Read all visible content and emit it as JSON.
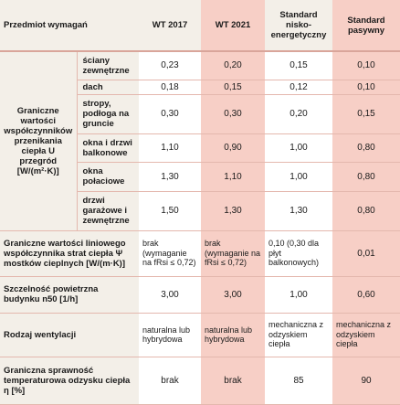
{
  "header": {
    "col0": "Przedmiot wymagań",
    "col1": "WT 2017",
    "col2": "WT 2021",
    "col3": "Standard nisko-energetyczny",
    "col4": "Standard pasywny"
  },
  "group_u": {
    "label": "Graniczne wartości współczynników przenikania ciepła U przegród [W/(m²·K)]",
    "rows": [
      {
        "name": "ściany zewnętrzne",
        "v1": "0,23",
        "v2": "0,20",
        "v3": "0,15",
        "v4": "0,10"
      },
      {
        "name": "dach",
        "v1": "0,18",
        "v2": "0,15",
        "v3": "0,12",
        "v4": "0,10"
      },
      {
        "name": "stropy, podłoga na gruncie",
        "v1": "0,30",
        "v2": "0,30",
        "v3": "0,20",
        "v4": "0,15"
      },
      {
        "name": "okna i drzwi balkonowe",
        "v1": "1,10",
        "v2": "0,90",
        "v3": "1,00",
        "v4": "0,80"
      },
      {
        "name": "okna połaciowe",
        "v1": "1,30",
        "v2": "1,10",
        "v3": "1,00",
        "v4": "0,80"
      },
      {
        "name": "drzwi garażowe i zewnętrzne",
        "v1": "1,50",
        "v2": "1,30",
        "v3": "1,30",
        "v4": "0,80"
      }
    ]
  },
  "psi": {
    "label": "Graniczne wartości liniowego współczynnika strat ciepła Ψ mostków cieplnych [W/(m·K)]",
    "v1": "brak (wymaganie na fRsi ≤ 0,72)",
    "v2": "brak (wymaganie na fRsi ≤ 0,72)",
    "v3": "0,10 (0,30 dla płyt balkonowych)",
    "v4": "0,01"
  },
  "airtight": {
    "label": "Szczelność powietrzna budynku n50 [1/h]",
    "v1": "3,00",
    "v2": "3,00",
    "v3": "1,00",
    "v4": "0,60"
  },
  "vent": {
    "label": "Rodzaj wentylacji",
    "v1": "naturalna lub hybrydowa",
    "v2": "naturalna lub hybrydowa",
    "v3": "mechaniczna z odzyskiem ciepła",
    "v4": "mechaniczna z odzyskiem ciepła"
  },
  "eff": {
    "label": "Graniczna sprawność temperaturowa odzysku ciepła η [%]",
    "v1": "brak",
    "v2": "brak",
    "v3": "85",
    "v4": "90"
  },
  "colors": {
    "pink": "#f7cfc6",
    "shade": "#f3efe8",
    "line": "#e4b8ae"
  }
}
